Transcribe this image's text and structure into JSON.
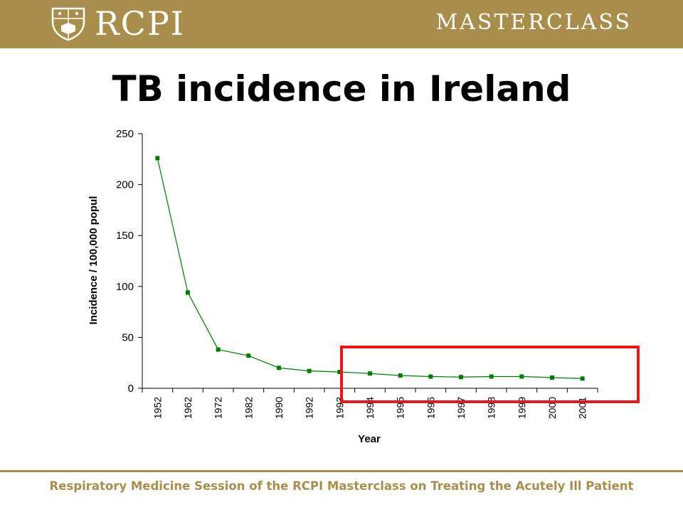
{
  "header": {
    "brand": "RCPI",
    "masterclass": "MASTERCLASS",
    "crest_icon": "rcpi-crest-icon"
  },
  "slide": {
    "title": "TB incidence in Ireland"
  },
  "footer": {
    "text": "Respiratory Medicine Session of the RCPI Masterclass on Treating the Acutely Ill Patient"
  },
  "colors": {
    "banner": "#a88d4d",
    "series": "#007a00",
    "highlight": "#e41a1a",
    "footer_text": "#a88d4d"
  },
  "chart_data": {
    "type": "line",
    "title": "",
    "xlabel": "Year",
    "ylabel": "Incidence / 100,000 popul",
    "categories": [
      "1952",
      "1962",
      "1972",
      "1982",
      "1990",
      "1992",
      "1993",
      "1994",
      "1995",
      "1996",
      "1997",
      "1998",
      "1999",
      "2000",
      "2001"
    ],
    "series": [
      {
        "values": [
          226,
          94,
          38,
          32,
          20,
          17,
          16,
          14.5,
          12.5,
          11.5,
          11,
          11.5,
          11.5,
          10.5,
          9.5
        ]
      }
    ],
    "ylim": [
      0,
      250
    ],
    "yticks": [
      0,
      50,
      100,
      150,
      200,
      250
    ],
    "grid": false,
    "legend": "none",
    "annotation": "red rectangle highlighting 1993–2001"
  }
}
